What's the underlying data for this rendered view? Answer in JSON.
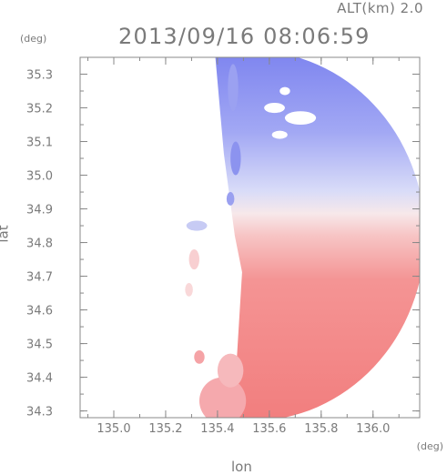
{
  "chart_data": {
    "type": "heatmap",
    "title": "2013/09/16 08:06:59",
    "subtitle": "ALT(km) 2.0",
    "xlabel": "lon",
    "ylabel": "lat",
    "x_unit": "(deg)",
    "y_unit": "(deg)",
    "xlim": [
      134.87,
      136.18
    ],
    "ylim": [
      34.28,
      35.35
    ],
    "x_ticks": [
      135.0,
      135.2,
      135.4,
      135.6,
      135.8,
      136.0
    ],
    "x_tick_labels": [
      "135.0",
      "135.2",
      "135.4",
      "135.6",
      "135.8",
      "136.0"
    ],
    "y_ticks": [
      34.3,
      34.4,
      34.5,
      34.6,
      34.7,
      34.8,
      34.9,
      35.0,
      35.1,
      35.2,
      35.3
    ],
    "y_tick_labels": [
      "34.3",
      "34.4",
      "34.5",
      "34.6",
      "34.7",
      "34.8",
      "34.9",
      "35.0",
      "35.1",
      "35.2",
      "35.3"
    ],
    "radar_center": [
      135.53,
      34.82
    ],
    "radar_range_lon": 0.67,
    "radar_range_lat": 0.55,
    "colors": {
      "toward": "#7b82ee",
      "neutral": "#f2f2f6",
      "away": "#f27a7a",
      "frame": "#888888"
    },
    "grid": false,
    "legend": "none"
  }
}
